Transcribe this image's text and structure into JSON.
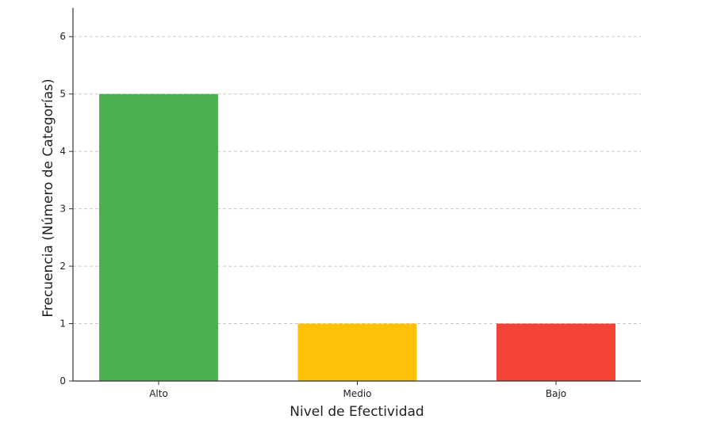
{
  "chart_data": {
    "type": "bar",
    "title": "",
    "xlabel": "Nivel de Efectividad",
    "ylabel": "Frecuencia (Número de Categorías)",
    "categories": [
      "Alto",
      "Medio",
      "Bajo"
    ],
    "values": [
      5,
      1,
      1
    ],
    "colors": [
      "#4CAF50",
      "#FFC107",
      "#F44336"
    ],
    "ylim": [
      0,
      6.5
    ],
    "yticks": [
      0,
      1,
      2,
      3,
      4,
      5,
      6
    ],
    "grid": "y-dashed"
  }
}
